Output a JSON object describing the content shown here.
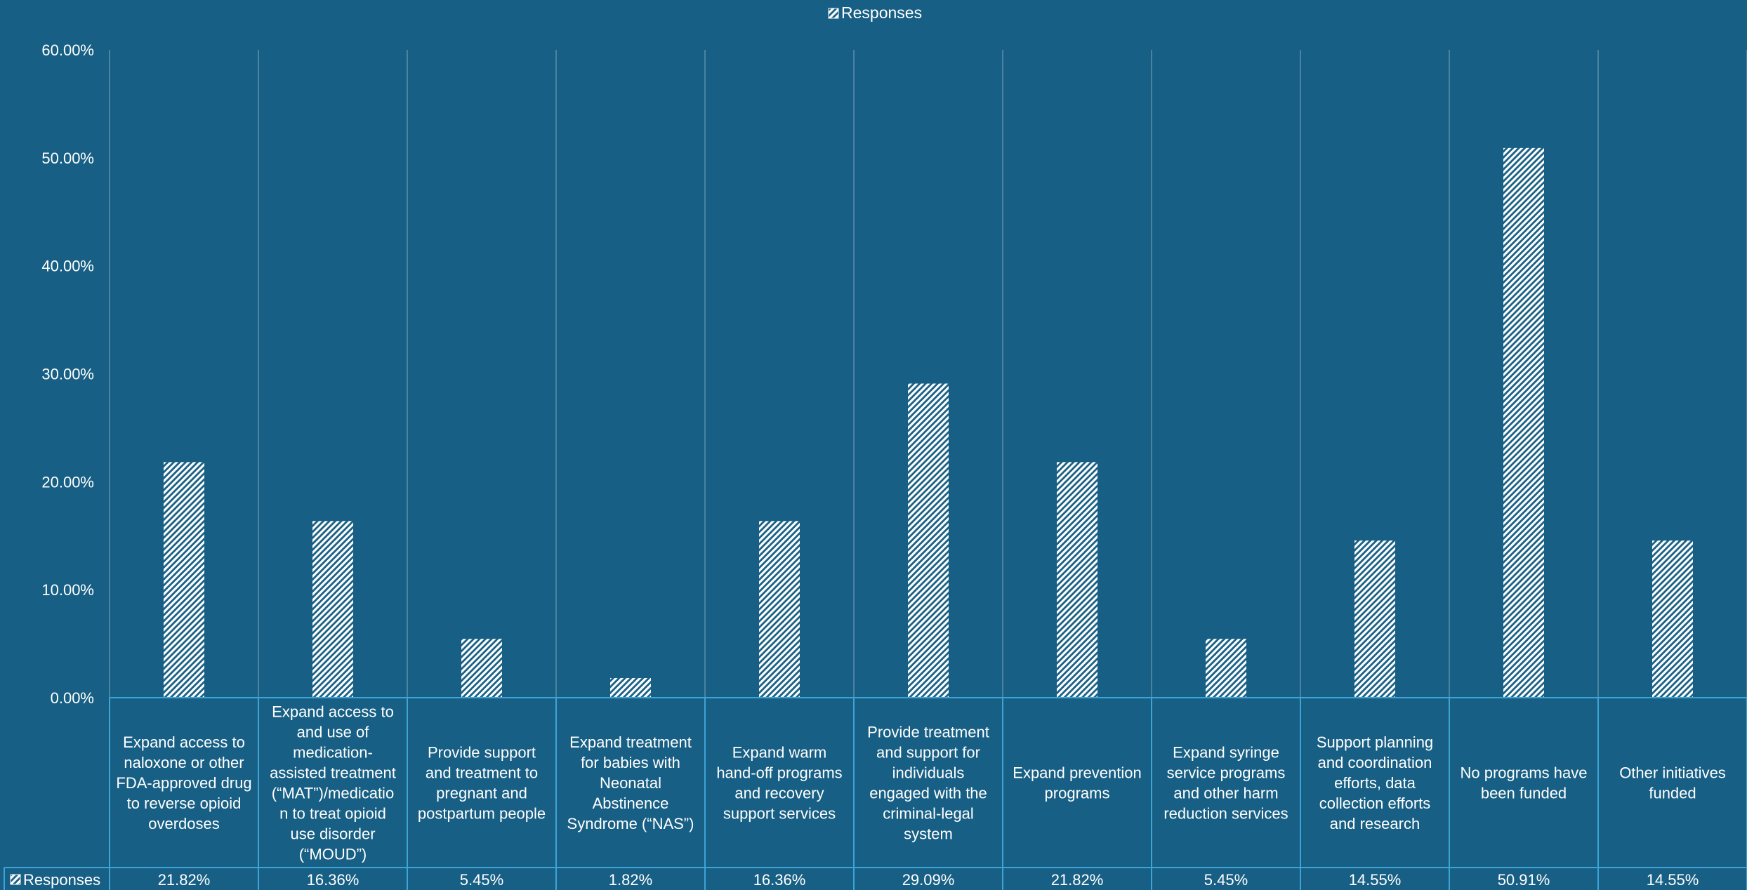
{
  "chart_data": {
    "type": "bar",
    "legend": {
      "label": "Responses",
      "position": "top-center"
    },
    "categories": [
      [
        "Expand access to",
        "naloxone or other",
        "FDA-approved drug",
        "to reverse opioid",
        "overdoses"
      ],
      [
        "Expand access to",
        "and use of",
        "medication-",
        "assisted treatment",
        "(“MAT”)/medicatio",
        "n to treat opioid",
        "use disorder",
        "(“MOUD”)"
      ],
      [
        "Provide support",
        "and treatment to",
        "pregnant and",
        "postpartum people"
      ],
      [
        "Expand treatment",
        "for babies with",
        "Neonatal",
        "Abstinence",
        "Syndrome (“NAS”)"
      ],
      [
        "Expand warm",
        "hand-off programs",
        "and recovery",
        "support services"
      ],
      [
        "Provide treatment",
        "and support for",
        "individuals",
        "engaged with the",
        "criminal-legal",
        "system"
      ],
      [
        "Expand prevention",
        "programs"
      ],
      [
        "Expand syringe",
        "service programs",
        "and other harm",
        "reduction services"
      ],
      [
        "Support planning",
        "and coordination",
        "efforts, data",
        "collection efforts",
        "and research"
      ],
      [
        "No programs have",
        "been funded"
      ],
      [
        "Other initiatives",
        "funded"
      ]
    ],
    "series": [
      {
        "name": "Responses",
        "values": [
          21.82,
          16.36,
          5.45,
          1.82,
          16.36,
          29.09,
          21.82,
          5.45,
          14.55,
          50.91,
          14.55
        ],
        "labels": [
          "21.82%",
          "16.36%",
          "5.45%",
          "1.82%",
          "16.36%",
          "29.09%",
          "21.82%",
          "5.45%",
          "14.55%",
          "50.91%",
          "14.55%"
        ]
      }
    ],
    "ylim": [
      0,
      60
    ],
    "yticks": [
      "0.00%",
      "10.00%",
      "20.00%",
      "30.00%",
      "40.00%",
      "50.00%",
      "60.00%"
    ],
    "grid": "vertical-category-lines",
    "data_table": true,
    "colors": {
      "background": "#175f84",
      "bars": "#ffffff",
      "grid": "#5d8fab",
      "table_border": "#3da4d8"
    }
  }
}
